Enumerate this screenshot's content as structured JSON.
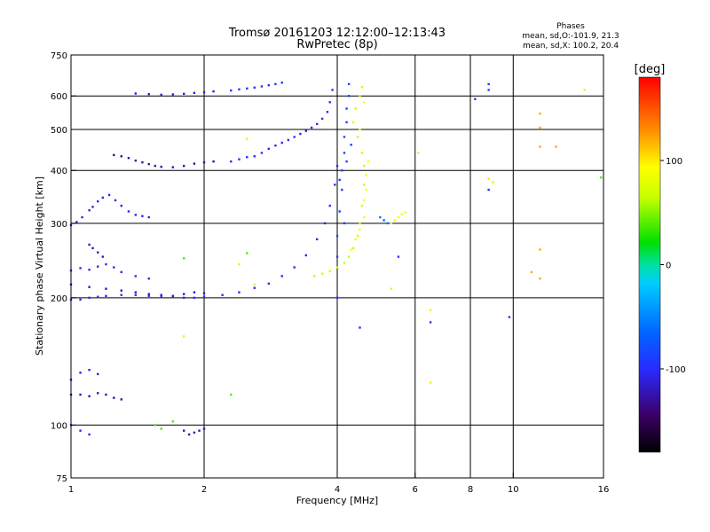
{
  "chart_data": {
    "type": "scatter",
    "title": "Tromsø 20161203 12:12:00–12:13:43",
    "subtitle": "RwPretec (8p)",
    "stats": {
      "heading": "Phases",
      "line1": "mean, sd,O:-101.9, 21.3",
      "line2": "mean, sd,X: 100.2, 20.4"
    },
    "xlabel": "Frequency [MHz]",
    "ylabel": "Stationary phase Virtual Height [km]",
    "x_scale": "log",
    "y_scale": "log",
    "xlim": [
      1,
      16
    ],
    "ylim": [
      75,
      750
    ],
    "x_ticks": [
      1,
      2,
      4,
      6,
      8,
      10,
      16
    ],
    "x_tick_labels": [
      "1",
      "2",
      "4",
      "6",
      "8",
      "10",
      "16"
    ],
    "y_ticks": [
      75,
      100,
      200,
      300,
      400,
      500,
      600,
      750
    ],
    "y_tick_labels": [
      "75",
      "100",
      "200",
      "300",
      "400",
      "500",
      "600",
      "750"
    ],
    "x_gridlines": [
      2,
      4,
      6,
      8,
      10
    ],
    "y_gridlines": [
      100,
      200,
      300,
      400,
      500,
      600
    ],
    "grid": true,
    "colorbar": {
      "label": "[deg]",
      "range": [
        -180,
        180
      ],
      "ticks": [
        100,
        0,
        -100
      ],
      "tick_labels": [
        "100",
        "0",
        "-100"
      ]
    },
    "series": [
      {
        "phase": -100,
        "points": [
          [
            1.0,
            198
          ],
          [
            1.05,
            198
          ],
          [
            1.1,
            200
          ],
          [
            1.15,
            201
          ],
          [
            1.2,
            202
          ],
          [
            1.3,
            203
          ],
          [
            1.4,
            203
          ],
          [
            1.5,
            202
          ],
          [
            1.6,
            201
          ],
          [
            1.7,
            201
          ],
          [
            1.8,
            200
          ],
          [
            1.9,
            200
          ],
          [
            2.0,
            201
          ],
          [
            2.2,
            203
          ],
          [
            2.4,
            206
          ],
          [
            2.6,
            211
          ],
          [
            2.8,
            216
          ],
          [
            3.0,
            225
          ],
          [
            3.2,
            236
          ],
          [
            3.4,
            252
          ],
          [
            3.6,
            275
          ],
          [
            3.75,
            300
          ],
          [
            3.85,
            330
          ],
          [
            3.95,
            370
          ],
          [
            4.0,
            410
          ]
        ]
      },
      {
        "phase": -120,
        "points": [
          [
            1.0,
            215
          ],
          [
            1.1,
            212
          ],
          [
            1.2,
            210
          ],
          [
            1.3,
            208
          ],
          [
            1.4,
            206
          ],
          [
            1.5,
            204
          ],
          [
            1.6,
            203
          ],
          [
            1.7,
            202
          ],
          [
            1.8,
            204
          ],
          [
            1.9,
            206
          ],
          [
            2.0,
            205
          ]
        ]
      },
      {
        "phase": -100,
        "points": [
          [
            1.0,
            232
          ],
          [
            1.05,
            235
          ],
          [
            1.1,
            233
          ],
          [
            1.15,
            237
          ],
          [
            1.2,
            240
          ],
          [
            1.25,
            236
          ],
          [
            1.3,
            230
          ],
          [
            1.4,
            225
          ],
          [
            1.5,
            222
          ]
        ]
      },
      {
        "phase": -115,
        "points": [
          [
            1.1,
            267
          ],
          [
            1.12,
            262
          ],
          [
            1.15,
            256
          ],
          [
            1.18,
            250
          ]
        ]
      },
      {
        "phase": -105,
        "points": [
          [
            1.0,
            297
          ],
          [
            1.03,
            302
          ],
          [
            1.06,
            310
          ],
          [
            1.1,
            322
          ],
          [
            1.12,
            328
          ],
          [
            1.15,
            338
          ],
          [
            1.18,
            345
          ],
          [
            1.22,
            350
          ],
          [
            1.26,
            340
          ],
          [
            1.3,
            330
          ],
          [
            1.35,
            320
          ],
          [
            1.4,
            314
          ],
          [
            1.45,
            312
          ],
          [
            1.5,
            310
          ]
        ]
      },
      {
        "phase": -125,
        "points": [
          [
            1.25,
            435
          ],
          [
            1.3,
            432
          ],
          [
            1.35,
            428
          ],
          [
            1.4,
            422
          ],
          [
            1.45,
            418
          ],
          [
            1.5,
            414
          ],
          [
            1.55,
            410
          ],
          [
            1.6,
            408
          ],
          [
            1.7,
            407
          ],
          [
            1.8,
            410
          ],
          [
            1.9,
            415
          ],
          [
            2.0,
            418
          ],
          [
            2.1,
            420
          ]
        ]
      },
      {
        "phase": -100,
        "points": [
          [
            2.3,
            420
          ],
          [
            2.4,
            425
          ],
          [
            2.5,
            430
          ],
          [
            2.6,
            432
          ],
          [
            2.7,
            440
          ],
          [
            2.8,
            450
          ],
          [
            2.9,
            458
          ],
          [
            3.0,
            465
          ],
          [
            3.1,
            472
          ],
          [
            3.2,
            480
          ],
          [
            3.3,
            488
          ],
          [
            3.4,
            496
          ],
          [
            3.5,
            505
          ],
          [
            3.6,
            515
          ],
          [
            3.7,
            530
          ],
          [
            3.8,
            550
          ],
          [
            3.85,
            580
          ],
          [
            3.9,
            620
          ]
        ]
      },
      {
        "phase": -110,
        "points": [
          [
            1.4,
            608
          ],
          [
            1.5,
            606
          ],
          [
            1.6,
            604
          ],
          [
            1.7,
            605
          ],
          [
            1.8,
            607
          ],
          [
            1.9,
            610
          ],
          [
            2.0,
            612
          ],
          [
            2.1,
            615
          ]
        ]
      },
      {
        "phase": -95,
        "points": [
          [
            2.3,
            618
          ],
          [
            2.4,
            622
          ],
          [
            2.5,
            625
          ],
          [
            2.6,
            628
          ],
          [
            2.7,
            632
          ],
          [
            2.8,
            636
          ],
          [
            2.9,
            640
          ],
          [
            3.0,
            645
          ]
        ]
      },
      {
        "phase": -85,
        "points": [
          [
            4.0,
            250
          ],
          [
            4.0,
            280
          ],
          [
            4.05,
            320
          ],
          [
            4.1,
            360
          ],
          [
            4.1,
            400
          ],
          [
            4.15,
            440
          ],
          [
            4.15,
            480
          ],
          [
            4.2,
            520
          ],
          [
            4.2,
            560
          ],
          [
            4.25,
            600
          ],
          [
            4.25,
            640
          ],
          [
            4.05,
            380
          ],
          [
            4.15,
            300
          ],
          [
            4.2,
            420
          ],
          [
            4.3,
            460
          ]
        ]
      },
      {
        "phase": -125,
        "points": [
          [
            1.0,
            118
          ],
          [
            1.05,
            118
          ],
          [
            1.1,
            117
          ],
          [
            1.15,
            119
          ],
          [
            1.2,
            118
          ],
          [
            1.25,
            116
          ],
          [
            1.3,
            115
          ]
        ]
      },
      {
        "phase": -110,
        "points": [
          [
            1.0,
            128
          ],
          [
            1.05,
            133
          ],
          [
            1.1,
            135
          ],
          [
            1.15,
            132
          ]
        ]
      },
      {
        "phase": -100,
        "points": [
          [
            1.0,
            100
          ],
          [
            1.05,
            97
          ],
          [
            1.1,
            95
          ]
        ]
      },
      {
        "phase": -120,
        "points": [
          [
            1.8,
            97
          ],
          [
            1.85,
            95
          ],
          [
            1.9,
            96
          ],
          [
            1.95,
            97
          ],
          [
            2.0,
            98
          ]
        ]
      },
      {
        "phase": 65,
        "points": [
          [
            3.55,
            225
          ],
          [
            3.7,
            228
          ],
          [
            3.85,
            231
          ],
          [
            4.0,
            236
          ],
          [
            4.15,
            242
          ],
          [
            4.25,
            250
          ],
          [
            4.35,
            262
          ],
          [
            4.45,
            280
          ],
          [
            4.5,
            300
          ],
          [
            4.55,
            330
          ],
          [
            4.6,
            370
          ],
          [
            4.6,
            410
          ],
          [
            4.55,
            440
          ],
          [
            4.45,
            480
          ],
          [
            4.35,
            520
          ],
          [
            4.4,
            560
          ],
          [
            4.5,
            600
          ],
          [
            4.55,
            630
          ]
        ]
      },
      {
        "phase": 95,
        "points": [
          [
            4.3,
            260
          ],
          [
            4.4,
            275
          ],
          [
            4.5,
            290
          ],
          [
            4.6,
            310
          ],
          [
            4.6,
            340
          ],
          [
            4.65,
            360
          ],
          [
            4.65,
            390
          ],
          [
            4.7,
            420
          ],
          [
            4.5,
            500
          ],
          [
            4.6,
            580
          ]
        ]
      },
      {
        "phase": 85,
        "points": [
          [
            5.3,
            300
          ],
          [
            5.4,
            305
          ],
          [
            5.5,
            310
          ],
          [
            5.6,
            315
          ],
          [
            5.7,
            318
          ]
        ]
      },
      {
        "phase": -60,
        "points": [
          [
            5.0,
            310
          ],
          [
            5.1,
            305
          ],
          [
            5.2,
            300
          ]
        ]
      },
      {
        "phase": 120,
        "points": [
          [
            11.5,
            545
          ],
          [
            11.5,
            505
          ],
          [
            12.5,
            455
          ],
          [
            11.5,
            455
          ],
          [
            11.5,
            222
          ],
          [
            11.5,
            260
          ],
          [
            11.0,
            230
          ]
        ]
      },
      {
        "phase": 100,
        "points": [
          [
            1.8,
            162
          ],
          [
            2.4,
            240
          ],
          [
            2.5,
            475
          ],
          [
            2.6,
            215
          ],
          [
            6.1,
            440
          ],
          [
            6.5,
            187
          ],
          [
            6.5,
            126
          ],
          [
            5.3,
            210
          ],
          [
            8.8,
            382
          ],
          [
            9.0,
            375
          ],
          [
            14.5,
            620
          ]
        ]
      },
      {
        "phase": -95,
        "points": [
          [
            8.8,
            640
          ],
          [
            8.8,
            620
          ],
          [
            8.2,
            590
          ],
          [
            8.8,
            360
          ],
          [
            9.8,
            180
          ],
          [
            6.5,
            175
          ],
          [
            4.5,
            170
          ],
          [
            4.0,
            200
          ],
          [
            5.5,
            250
          ]
        ]
      },
      {
        "phase": 40,
        "points": [
          [
            1.55,
            100
          ],
          [
            1.6,
            98
          ],
          [
            1.7,
            102
          ],
          [
            2.3,
            118
          ],
          [
            1.8,
            248
          ],
          [
            2.5,
            255
          ],
          [
            15.8,
            385
          ]
        ]
      }
    ]
  }
}
